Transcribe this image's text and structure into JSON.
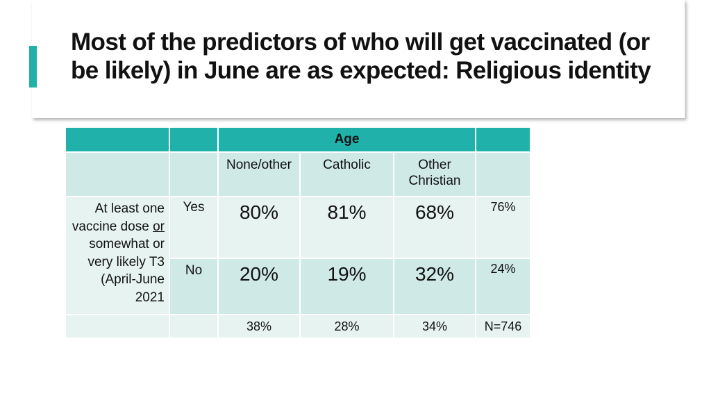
{
  "slide": {
    "title": "Most of the predictors of who will get vaccinated (or be likely) in June are as expected:  Religious identity"
  },
  "table": {
    "group_header": "Age",
    "columns": [
      "None/other",
      "Catholic",
      "Other Christian"
    ],
    "row_label": {
      "part1": "At least one vaccine dose",
      "part2": "or",
      "part3": "somewhat or very likely T3 (April-June 2021"
    },
    "rows": [
      {
        "label": "Yes",
        "values": [
          "80%",
          "81%",
          "68%"
        ],
        "total": "76%"
      },
      {
        "label": "No",
        "values": [
          "20%",
          "19%",
          "32%"
        ],
        "total": "24%"
      }
    ],
    "totals": [
      "38%",
      "28%",
      "34%"
    ],
    "n": "N=746"
  },
  "colors": {
    "accent": "#20b2aa",
    "row_dark": "#cfe9e7",
    "row_light": "#e6f3f1"
  }
}
